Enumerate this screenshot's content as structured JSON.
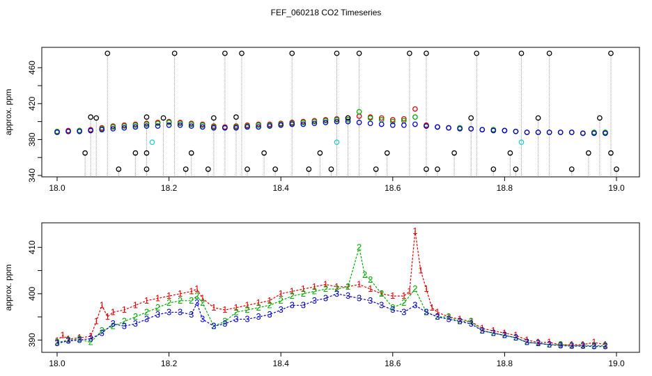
{
  "title": "FEF_060218  CO2 Timeseries",
  "colors": {
    "black": "#000000",
    "red": "#dd0000",
    "green": "#00aa00",
    "blue": "#0000cc",
    "cyan": "#22cccc",
    "spike": "#999999"
  },
  "chart_data": [
    {
      "type": "scatter",
      "title": "FEF_060218  CO2 Timeseries",
      "xlabel": "",
      "ylabel": "approx. ppm",
      "xlim": [
        18.0,
        19.0
      ],
      "ylim": [
        340,
        478
      ],
      "xticks": [
        18.0,
        18.2,
        18.4,
        18.6,
        18.8,
        19.0
      ],
      "xtick_labels": [
        "18.0",
        "18.2",
        "18.4",
        "18.6",
        "18.8",
        "19.0"
      ],
      "yticks": [
        340,
        380,
        420,
        460
      ],
      "ytick_labels": [
        "340",
        "380",
        "420",
        "460"
      ],
      "extra_yticks": [
        360,
        400,
        440
      ],
      "series": [
        {
          "name": "red",
          "color": "#dd0000",
          "marker": "o",
          "x": [
            18.0,
            18.02,
            18.04,
            18.06,
            18.08,
            18.1,
            18.12,
            18.14,
            18.16,
            18.18,
            18.2,
            18.22,
            18.24,
            18.26,
            18.28,
            18.3,
            18.32,
            18.34,
            18.36,
            18.38,
            18.4,
            18.42,
            18.44,
            18.46,
            18.48,
            18.5,
            18.52,
            18.54,
            18.56,
            18.58,
            18.6,
            18.62,
            18.64,
            18.66,
            18.68,
            18.7,
            18.72,
            18.74,
            18.76,
            18.78,
            18.8,
            18.82,
            18.84,
            18.86,
            18.88,
            18.9,
            18.92,
            18.94,
            18.96,
            18.98
          ],
          "y": [
            389,
            390,
            390,
            391,
            393,
            395,
            396,
            397,
            398,
            399,
            400,
            399,
            398,
            397,
            395,
            394,
            395,
            396,
            397,
            397,
            398,
            399,
            400,
            401,
            402,
            403,
            404,
            406,
            405,
            404,
            402,
            403,
            414,
            396,
            394,
            393,
            393,
            392,
            391,
            391,
            390,
            389,
            388,
            388,
            388,
            388,
            388,
            387,
            388,
            388
          ]
        },
        {
          "name": "green",
          "color": "#00aa00",
          "marker": "o",
          "x": [
            18.0,
            18.02,
            18.04,
            18.06,
            18.08,
            18.1,
            18.12,
            18.14,
            18.16,
            18.18,
            18.2,
            18.22,
            18.24,
            18.26,
            18.28,
            18.3,
            18.32,
            18.34,
            18.36,
            18.38,
            18.4,
            18.42,
            18.44,
            18.46,
            18.48,
            18.5,
            18.52,
            18.54,
            18.56,
            18.58,
            18.6,
            18.62,
            18.64,
            18.66,
            18.68,
            18.7,
            18.72,
            18.74,
            18.76,
            18.78,
            18.8,
            18.82,
            18.84,
            18.86,
            18.88,
            18.9,
            18.92,
            18.94,
            18.96,
            18.98
          ],
          "y": [
            389,
            389,
            390,
            390,
            392,
            394,
            395,
            396,
            397,
            398,
            399,
            398,
            397,
            396,
            394,
            393,
            394,
            395,
            396,
            396,
            397,
            398,
            399,
            400,
            401,
            402,
            402,
            411,
            404,
            402,
            400,
            401,
            405,
            395,
            394,
            393,
            393,
            392,
            391,
            391,
            390,
            389,
            388,
            388,
            388,
            388,
            388,
            387,
            388,
            388
          ]
        },
        {
          "name": "blue",
          "color": "#0000cc",
          "marker": "o",
          "x": [
            18.0,
            18.02,
            18.04,
            18.06,
            18.08,
            18.1,
            18.12,
            18.14,
            18.16,
            18.18,
            18.2,
            18.22,
            18.24,
            18.26,
            18.28,
            18.3,
            18.32,
            18.34,
            18.36,
            18.38,
            18.4,
            18.42,
            18.44,
            18.46,
            18.48,
            18.5,
            18.52,
            18.54,
            18.56,
            18.58,
            18.6,
            18.62,
            18.64,
            18.66,
            18.68,
            18.7,
            18.72,
            18.74,
            18.76,
            18.78,
            18.8,
            18.82,
            18.84,
            18.86,
            18.88,
            18.9,
            18.92,
            18.94,
            18.96,
            18.98
          ],
          "y": [
            388,
            389,
            389,
            390,
            391,
            392,
            393,
            394,
            395,
            395,
            396,
            396,
            395,
            394,
            393,
            393,
            393,
            394,
            394,
            395,
            396,
            397,
            397,
            398,
            399,
            400,
            400,
            399,
            398,
            397,
            396,
            396,
            397,
            395,
            394,
            393,
            392,
            392,
            391,
            390,
            390,
            389,
            388,
            388,
            388,
            388,
            388,
            387,
            387,
            387
          ]
        },
        {
          "name": "outliers",
          "color": "#000000",
          "marker": "o",
          "x": [
            18.05,
            18.06,
            18.07,
            18.09,
            18.11,
            18.14,
            18.16,
            18.16,
            18.16,
            18.19,
            18.21,
            18.23,
            18.24,
            18.27,
            18.28,
            18.3,
            18.32,
            18.33,
            18.34,
            18.37,
            18.39,
            18.42,
            18.45,
            18.47,
            18.49,
            18.5,
            18.52,
            18.54,
            18.57,
            18.59,
            18.63,
            18.66,
            18.66,
            18.68,
            18.71,
            18.74,
            18.75,
            18.78,
            18.81,
            18.82,
            18.83,
            18.86,
            18.88,
            18.92,
            18.95,
            18.97,
            18.99,
            18.99,
            19.0
          ],
          "y": [
            365,
            405,
            404,
            476,
            347,
            365,
            347,
            365,
            405,
            404,
            476,
            347,
            365,
            347,
            404,
            476,
            405,
            476,
            347,
            365,
            347,
            476,
            347,
            365,
            347,
            476,
            404,
            476,
            347,
            365,
            476,
            347,
            476,
            347,
            365,
            404,
            476,
            347,
            365,
            347,
            476,
            404,
            476,
            347,
            365,
            404,
            476,
            365,
            347
          ]
        },
        {
          "name": "cyan",
          "color": "#22cccc",
          "marker": "o",
          "x": [
            18.17,
            18.5,
            18.83
          ],
          "y": [
            377,
            377,
            377
          ]
        }
      ]
    },
    {
      "type": "line",
      "title": "",
      "xlabel": "",
      "ylabel": "approx. ppm",
      "xlim": [
        18.0,
        19.0
      ],
      "ylim": [
        387.5,
        415
      ],
      "xticks": [
        18.0,
        18.2,
        18.4,
        18.6,
        18.8,
        19.0
      ],
      "xtick_labels": [
        "18.0",
        "18.2",
        "18.4",
        "18.6",
        "18.8",
        "19.0"
      ],
      "yticks": [
        390,
        400,
        410
      ],
      "ytick_labels": [
        "390",
        "400",
        "410"
      ],
      "extra_yticks": [
        395,
        405
      ],
      "series": [
        {
          "name": "1",
          "label": "1",
          "color": "#dd0000",
          "x": [
            18.0,
            18.01,
            18.02,
            18.04,
            18.06,
            18.07,
            18.08,
            18.09,
            18.1,
            18.12,
            18.14,
            18.16,
            18.18,
            18.2,
            18.22,
            18.24,
            18.25,
            18.26,
            18.28,
            18.3,
            18.32,
            18.34,
            18.36,
            18.38,
            18.4,
            18.42,
            18.44,
            18.46,
            18.48,
            18.5,
            18.52,
            18.54,
            18.56,
            18.58,
            18.6,
            18.62,
            18.63,
            18.64,
            18.65,
            18.66,
            18.67,
            18.68,
            18.7,
            18.72,
            18.74,
            18.76,
            18.78,
            18.8,
            18.82,
            18.84,
            18.86,
            18.88,
            18.9,
            18.92,
            18.94,
            18.96,
            18.98
          ],
          "y": [
            389.8,
            391.0,
            390.2,
            390.5,
            390.8,
            394.0,
            397.5,
            395.0,
            396.0,
            396.5,
            397.5,
            398.5,
            399.0,
            399.5,
            400.0,
            400.5,
            401.0,
            399.0,
            397.0,
            396.5,
            397.0,
            397.5,
            398.0,
            398.5,
            400.0,
            400.5,
            401.0,
            401.5,
            402.0,
            401.5,
            401.5,
            402.0,
            401.0,
            400.0,
            399.5,
            399.5,
            400.5,
            413.5,
            405.0,
            401.0,
            397.0,
            396.0,
            395.0,
            394.5,
            394.0,
            392.5,
            392.0,
            391.5,
            391.0,
            390.0,
            389.5,
            389.5,
            389.0,
            389.0,
            389.0,
            389.5,
            389.0
          ]
        },
        {
          "name": "2",
          "label": "2",
          "color": "#00aa00",
          "x": [
            18.0,
            18.02,
            18.04,
            18.06,
            18.08,
            18.1,
            18.12,
            18.14,
            18.16,
            18.18,
            18.2,
            18.22,
            18.24,
            18.25,
            18.26,
            18.28,
            18.3,
            18.32,
            18.34,
            18.36,
            18.38,
            18.4,
            18.42,
            18.44,
            18.46,
            18.48,
            18.5,
            18.52,
            18.54,
            18.55,
            18.56,
            18.58,
            18.6,
            18.62,
            18.64,
            18.66,
            18.68,
            18.7,
            18.72,
            18.74,
            18.76,
            18.78,
            18.8,
            18.82,
            18.84,
            18.86,
            18.88,
            18.9,
            18.92,
            18.94,
            18.96,
            18.98
          ],
          "y": [
            389.5,
            390.0,
            390.2,
            389.5,
            392.0,
            393.0,
            394.0,
            395.0,
            396.0,
            397.0,
            398.0,
            398.5,
            398.5,
            399.5,
            398.0,
            393.0,
            394.0,
            396.0,
            396.5,
            397.0,
            397.5,
            398.5,
            399.5,
            400.0,
            400.5,
            401.0,
            401.0,
            401.5,
            410.0,
            404.0,
            403.0,
            400.0,
            397.0,
            398.0,
            401.0,
            396.0,
            395.0,
            395.0,
            394.0,
            394.0,
            392.0,
            391.5,
            391.0,
            390.5,
            389.5,
            389.3,
            389.0,
            389.0,
            388.8,
            388.8,
            388.8,
            388.8
          ]
        },
        {
          "name": "3",
          "label": "3",
          "color": "#0000cc",
          "x": [
            18.0,
            18.02,
            18.04,
            18.06,
            18.08,
            18.1,
            18.12,
            18.14,
            18.16,
            18.18,
            18.2,
            18.22,
            18.24,
            18.25,
            18.26,
            18.28,
            18.3,
            18.32,
            18.34,
            18.36,
            18.38,
            18.4,
            18.42,
            18.44,
            18.46,
            18.48,
            18.5,
            18.52,
            18.54,
            18.56,
            18.58,
            18.6,
            18.62,
            18.64,
            18.66,
            18.68,
            18.7,
            18.72,
            18.74,
            18.76,
            18.78,
            18.8,
            18.82,
            18.84,
            18.86,
            18.88,
            18.9,
            18.92,
            18.94,
            18.96,
            18.98
          ],
          "y": [
            389.3,
            389.8,
            390.0,
            390.3,
            391.5,
            393.5,
            393.0,
            393.5,
            394.5,
            395.5,
            396.0,
            396.0,
            395.5,
            398.0,
            394.5,
            393.0,
            393.5,
            394.5,
            394.5,
            395.0,
            395.5,
            396.5,
            397.5,
            397.5,
            398.5,
            399.0,
            400.0,
            399.5,
            399.0,
            398.5,
            397.5,
            396.5,
            396.0,
            397.5,
            396.0,
            395.0,
            394.5,
            394.0,
            393.5,
            392.0,
            391.5,
            391.0,
            390.5,
            389.5,
            389.3,
            389.0,
            388.8,
            388.7,
            388.7,
            388.6,
            388.6
          ]
        }
      ]
    }
  ]
}
